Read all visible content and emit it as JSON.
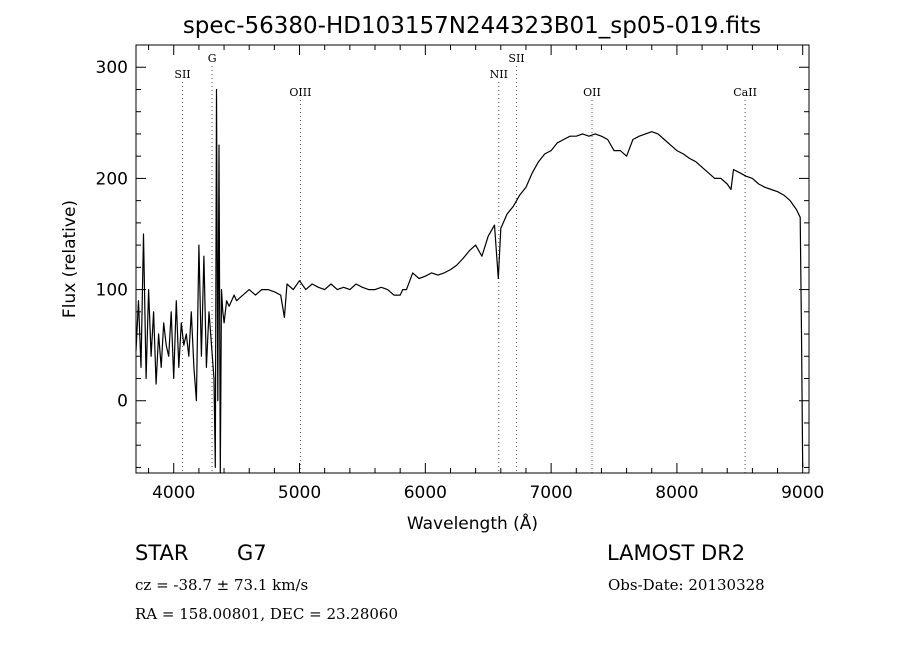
{
  "chart_data": {
    "type": "line",
    "title": "spec-56380-HD103157N244323B01_sp05-019.fits",
    "xlabel": "Wavelength (Å)",
    "ylabel": "Flux (relative)",
    "xlim": [
      3700,
      9050
    ],
    "ylim": [
      -65,
      320
    ],
    "x_ticks": [
      4000,
      5000,
      6000,
      7000,
      8000,
      9000
    ],
    "y_ticks": [
      0,
      100,
      200,
      300
    ],
    "grid": false,
    "series": [
      {
        "x": [
          3700,
          3720,
          3740,
          3760,
          3780,
          3800,
          3820,
          3840,
          3860,
          3880,
          3900,
          3920,
          3940,
          3960,
          3980,
          4000,
          4020,
          4040,
          4060,
          4080,
          4100,
          4120,
          4140,
          4160,
          4180,
          4200,
          4220,
          4240,
          4260,
          4280,
          4300,
          4320,
          4330,
          4340,
          4350,
          4360,
          4370,
          4380,
          4390,
          4400,
          4420,
          4440,
          4460,
          4480,
          4500,
          4550,
          4600,
          4650,
          4700,
          4750,
          4800,
          4850,
          4880,
          4900,
          4950,
          5000,
          5050,
          5100,
          5150,
          5200,
          5250,
          5300,
          5350,
          5400,
          5450,
          5500,
          5550,
          5600,
          5650,
          5700,
          5750,
          5800,
          5820,
          5850,
          5900,
          5950,
          6000,
          6050,
          6100,
          6150,
          6200,
          6250,
          6300,
          6350,
          6400,
          6450,
          6500,
          6550,
          6580,
          6600,
          6650,
          6700,
          6750,
          6800,
          6850,
          6900,
          6950,
          7000,
          7050,
          7100,
          7150,
          7200,
          7250,
          7300,
          7350,
          7400,
          7450,
          7500,
          7550,
          7600,
          7650,
          7700,
          7750,
          7800,
          7850,
          7900,
          7950,
          8000,
          8050,
          8100,
          8150,
          8200,
          8250,
          8300,
          8350,
          8400,
          8430,
          8450,
          8500,
          8550,
          8600,
          8650,
          8700,
          8750,
          8800,
          8850,
          8900,
          8950,
          8980,
          8990,
          9000
        ],
        "values": [
          45,
          90,
          30,
          150,
          20,
          100,
          40,
          80,
          15,
          60,
          30,
          70,
          50,
          40,
          80,
          20,
          90,
          30,
          70,
          50,
          60,
          40,
          80,
          30,
          0,
          140,
          40,
          130,
          30,
          80,
          50,
          20,
          -60,
          280,
          0,
          230,
          -65,
          100,
          80,
          70,
          90,
          85,
          90,
          95,
          90,
          95,
          100,
          95,
          100,
          100,
          98,
          95,
          75,
          105,
          100,
          108,
          100,
          105,
          102,
          100,
          105,
          100,
          102,
          100,
          105,
          102,
          100,
          100,
          102,
          100,
          95,
          95,
          100,
          100,
          115,
          110,
          112,
          115,
          113,
          115,
          118,
          122,
          128,
          135,
          140,
          130,
          148,
          158,
          110,
          155,
          168,
          175,
          185,
          192,
          205,
          215,
          222,
          225,
          232,
          235,
          238,
          238,
          240,
          238,
          240,
          238,
          235,
          225,
          225,
          220,
          235,
          238,
          240,
          242,
          240,
          235,
          230,
          225,
          222,
          218,
          215,
          210,
          205,
          200,
          200,
          195,
          190,
          208,
          205,
          202,
          200,
          195,
          192,
          190,
          188,
          185,
          180,
          172,
          165,
          60,
          -60
        ]
      }
    ],
    "line_markers": [
      {
        "label": "SII",
        "x": 4070,
        "level": 1
      },
      {
        "label": "G",
        "x": 4305,
        "level": 0
      },
      {
        "label": "OIII",
        "x": 5007,
        "level": 2
      },
      {
        "label": "NII",
        "x": 6584,
        "level": 1
      },
      {
        "label": "SII",
        "x": 6725,
        "level": 0
      },
      {
        "label": "OII",
        "x": 7325,
        "level": 2
      },
      {
        "label": "CaII",
        "x": 8542,
        "level": 2
      }
    ]
  },
  "info": {
    "object_class": "STAR",
    "subclass": "G7",
    "survey": "LAMOST DR2",
    "redshift": "cz = -38.7 ± 73.1 km/s",
    "obs_date": "Obs-Date: 20130328",
    "coords": "RA = 158.00801, DEC =  23.28060"
  }
}
